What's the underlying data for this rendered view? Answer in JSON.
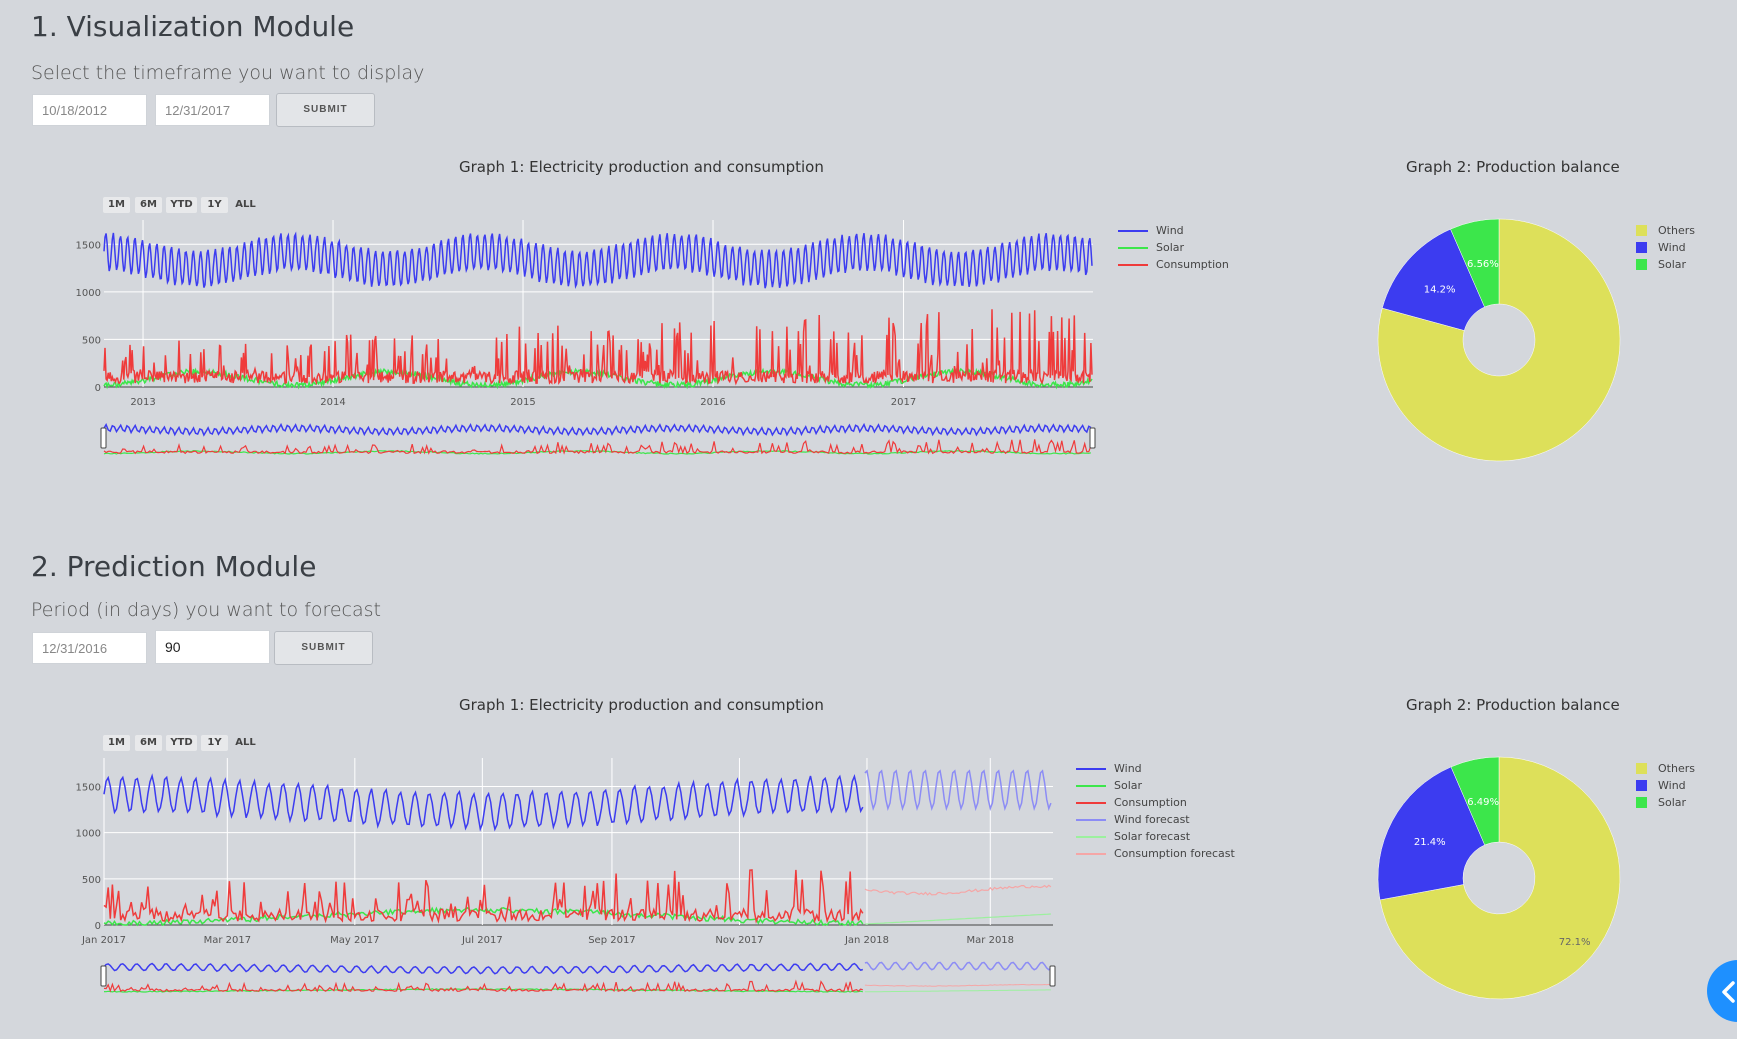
{
  "viz": {
    "title": "1. Visualization Module",
    "subtitle": "Select the timeframe you want to display",
    "start_date": "10/18/2012",
    "end_date": "12/31/2017",
    "submit_label": "SUBMIT",
    "range_buttons": [
      "1M",
      "6M",
      "YTD",
      "1Y",
      "ALL"
    ]
  },
  "pred": {
    "title": "2. Prediction Module",
    "subtitle": "Period (in days) you want to forecast",
    "start_date": "12/31/2016",
    "days": "90",
    "submit_label": "SUBMIT",
    "range_buttons": [
      "1M",
      "6M",
      "YTD",
      "1Y",
      "ALL"
    ]
  },
  "colors": {
    "wind": "#3c3cf0",
    "solar": "#3ce64b",
    "consumption": "#ef3b3b",
    "wind_forecast": "#8c8cf5",
    "solar_forecast": "#9cf09e",
    "consumption_forecast": "#f5a6a6",
    "others": "#dde05a"
  },
  "chart_data": [
    {
      "type": "line",
      "title": "Graph 1: Electricity production and consumption",
      "x_ticks": [
        "2013",
        "2014",
        "2015",
        "2016",
        "2017"
      ],
      "y_ticks": [
        0,
        500,
        1000,
        1500
      ],
      "x_range": [
        "2012-10-18",
        "2017-12-31"
      ],
      "y_range": [
        0,
        1650
      ],
      "legend": [
        "Wind",
        "Solar",
        "Consumption"
      ],
      "series": [
        {
          "name": "Wind",
          "approx_range": [
            900,
            1650
          ]
        },
        {
          "name": "Solar",
          "approx_range": [
            0,
            220
          ]
        },
        {
          "name": "Consumption",
          "approx_range": [
            20,
            800
          ]
        }
      ]
    },
    {
      "type": "pie",
      "title": "Graph 2: Production balance",
      "labels": [
        "Others",
        "Wind",
        "Solar"
      ],
      "values": [
        79.24,
        14.2,
        6.56
      ],
      "shown_labels": [
        "",
        "14.2%",
        "6.56%"
      ]
    },
    {
      "type": "line",
      "title": "Graph 1: Electricity production and consumption",
      "x_ticks": [
        "Jan 2017",
        "Mar 2017",
        "May 2017",
        "Jul 2017",
        "Sep 2017",
        "Nov 2017",
        "Jan 2018",
        "Mar 2018"
      ],
      "y_ticks": [
        0,
        500,
        1000,
        1500
      ],
      "x_range": [
        "2017-01-01",
        "2018-03-31"
      ],
      "y_range": [
        0,
        1700
      ],
      "legend": [
        "Wind",
        "Solar",
        "Consumption",
        "Wind forecast",
        "Solar forecast",
        "Consumption forecast"
      ],
      "series": [
        {
          "name": "Wind",
          "approx_range": [
            1000,
            1700
          ]
        },
        {
          "name": "Solar",
          "approx_range": [
            0,
            200
          ]
        },
        {
          "name": "Consumption",
          "approx_range": [
            20,
            800
          ]
        },
        {
          "name": "Wind forecast",
          "approx_range": [
            1250,
            1700
          ]
        },
        {
          "name": "Solar forecast",
          "approx_range": [
            0,
            120
          ]
        },
        {
          "name": "Consumption forecast",
          "approx_range": [
            330,
            460
          ]
        }
      ]
    },
    {
      "type": "pie",
      "title": "Graph 2: Production balance",
      "labels": [
        "Others",
        "Wind",
        "Solar"
      ],
      "values": [
        72.1,
        21.4,
        6.49
      ],
      "shown_labels": [
        "72.1%",
        "21.4%",
        "6.49%"
      ]
    }
  ]
}
